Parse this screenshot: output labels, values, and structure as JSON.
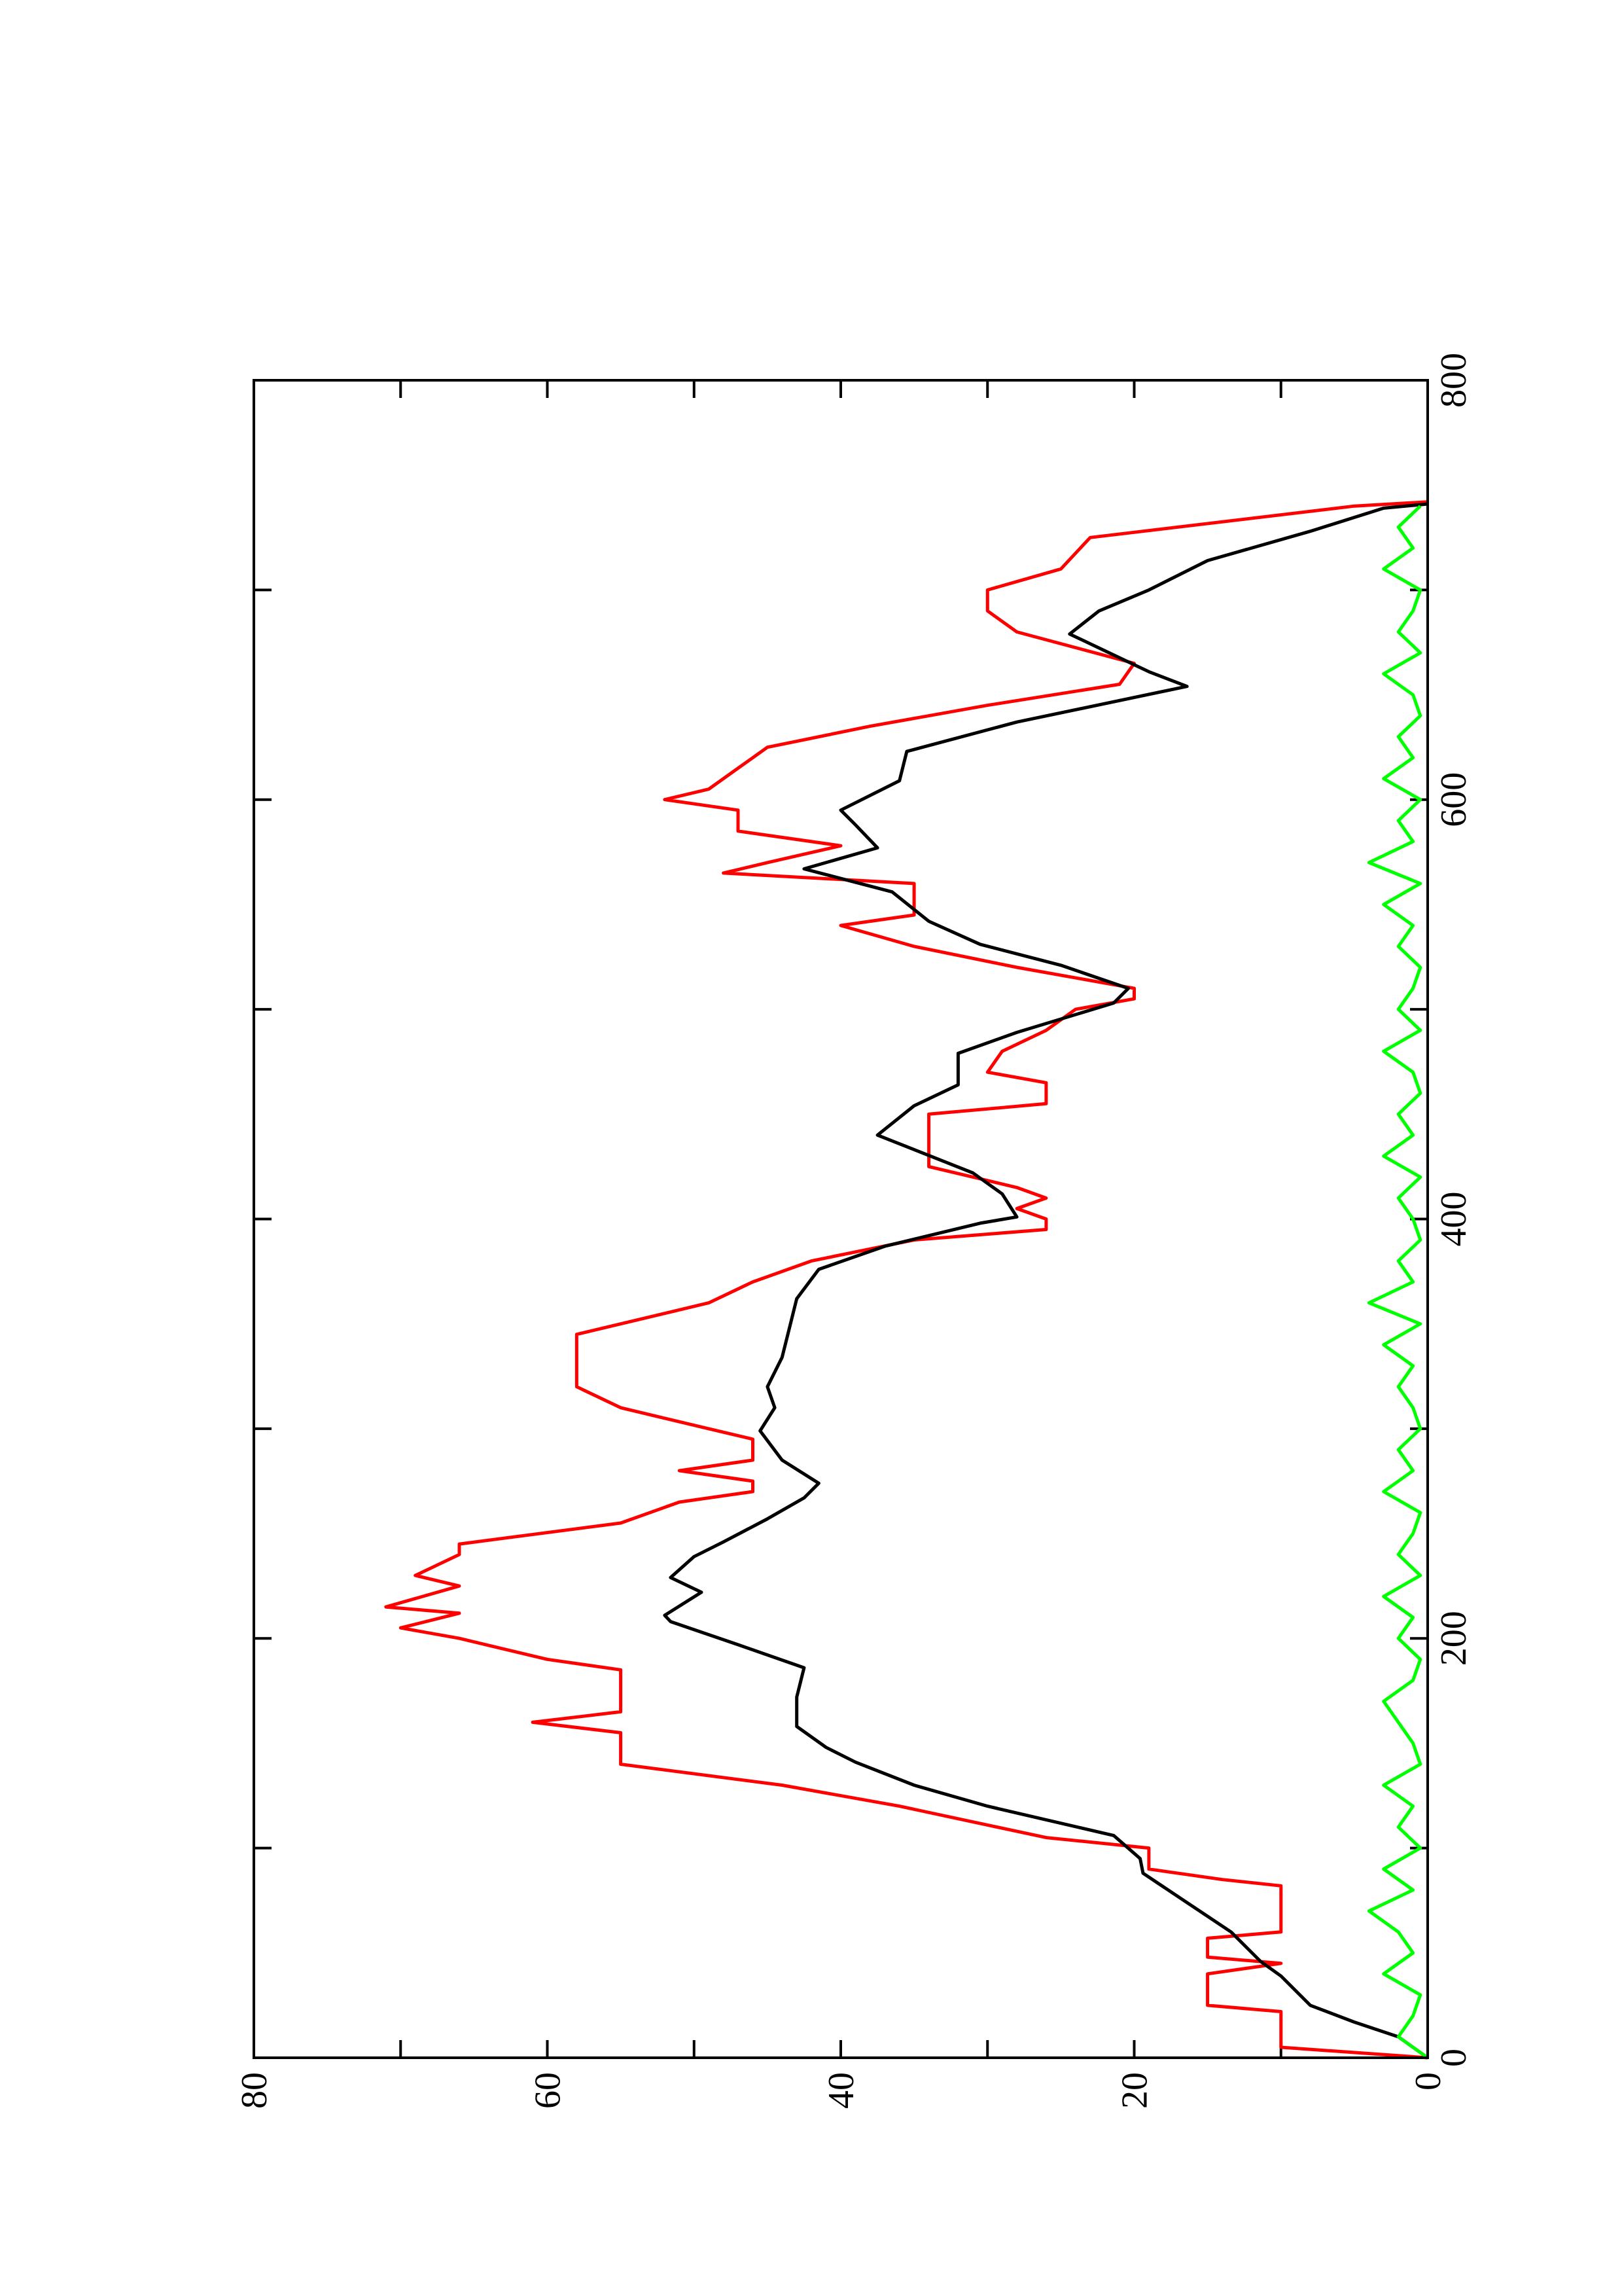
{
  "chart_data": {
    "type": "line",
    "xlim": [
      0,
      800
    ],
    "xticks": [
      0,
      200,
      400,
      600,
      800
    ],
    "xminor": [
      100,
      300,
      500,
      700
    ],
    "ylim": [
      0,
      80
    ],
    "yticks": [
      0,
      20,
      40,
      60,
      80
    ],
    "yminor": [
      10,
      30,
      50,
      70
    ],
    "rotated": true,
    "series": [
      {
        "color": "#ff0000",
        "x": [
          0,
          5,
          22,
          25,
          40,
          45,
          48,
          57,
          60,
          82,
          85,
          90,
          100,
          105,
          120,
          130,
          140,
          155,
          160,
          165,
          185,
          190,
          200,
          205,
          212,
          215,
          225,
          230,
          240,
          245,
          255,
          265,
          270,
          275,
          280,
          285,
          295,
          300,
          305,
          310,
          320,
          345,
          355,
          360,
          370,
          380,
          390,
          395,
          400,
          405,
          410,
          415,
          425,
          450,
          455,
          465,
          470,
          480,
          490,
          500,
          505,
          510,
          520,
          530,
          540,
          545,
          560,
          565,
          570,
          578,
          585,
          595,
          600,
          605,
          615,
          625,
          635,
          645,
          655,
          665,
          680,
          690,
          700,
          710,
          725,
          740,
          742
        ],
        "values": [
          0,
          10,
          10,
          15,
          15,
          10,
          15,
          15,
          10,
          10,
          14,
          19,
          19,
          26,
          36,
          44,
          55,
          55,
          61,
          55,
          55,
          60,
          66,
          70,
          66,
          71,
          66,
          69,
          66,
          66,
          55,
          51,
          46,
          46,
          51,
          46,
          46,
          49,
          52,
          55,
          58,
          58,
          52,
          49,
          46,
          42,
          35,
          26,
          26,
          28,
          26,
          28,
          34,
          34,
          26,
          26,
          30,
          29,
          26,
          24,
          20,
          20,
          28,
          35,
          40,
          35,
          35,
          48,
          45,
          40,
          47,
          47,
          52,
          49,
          47,
          45,
          38,
          30,
          21,
          20,
          28,
          30,
          30,
          25,
          23,
          5,
          0
        ]
      },
      {
        "color": "#000000",
        "x": [
          0,
          10,
          17,
          25,
          39,
          46,
          60,
          74,
          88,
          95,
          106,
          120,
          130,
          141,
          148,
          158,
          172,
          186,
          197,
          208,
          211,
          222,
          229,
          239,
          246,
          257,
          267,
          274,
          285,
          299,
          310,
          320,
          334,
          348,
          362,
          376,
          387,
          398,
          401,
          412,
          422,
          440,
          454,
          464,
          479,
          489,
          503,
          510,
          521,
          531,
          542,
          556,
          567,
          577,
          588,
          595,
          609,
          623,
          637,
          654,
          661,
          679,
          690,
          700,
          714,
          728,
          739,
          741
        ],
        "values": [
          0,
          2,
          5,
          8,
          10,
          11.4,
          13.4,
          16.4,
          19.4,
          19.6,
          21.4,
          30,
          35,
          39,
          41,
          43,
          43,
          42.5,
          47,
          51.6,
          52,
          49.5,
          51.6,
          50,
          48,
          45,
          42.5,
          41.5,
          44,
          45.5,
          44.5,
          45,
          44,
          43.5,
          43,
          41.5,
          37,
          30.5,
          28,
          29,
          31,
          37.5,
          35,
          32,
          32,
          28,
          21.4,
          20.4,
          25,
          30.5,
          34,
          36.5,
          42.5,
          37.5,
          39,
          40,
          36,
          35.5,
          28,
          16.4,
          19,
          24.4,
          22.4,
          19,
          15,
          8,
          3,
          0
        ]
      },
      {
        "color": "#00ff00",
        "x": [
          0,
          10,
          20,
          30,
          40,
          50,
          60,
          70,
          80,
          90,
          100,
          110,
          120,
          130,
          140,
          150,
          160,
          170,
          180,
          190,
          200,
          210,
          220,
          230,
          240,
          250,
          260,
          270,
          280,
          290,
          300,
          310,
          320,
          330,
          340,
          350,
          360,
          370,
          380,
          390,
          400,
          410,
          420,
          430,
          440,
          450,
          460,
          470,
          480,
          490,
          500,
          510,
          520,
          530,
          540,
          550,
          560,
          570,
          580,
          590,
          600,
          610,
          620,
          630,
          640,
          650,
          660,
          670,
          680,
          690,
          700,
          710,
          720,
          730,
          740
        ],
        "values": [
          0,
          2,
          1,
          0.5,
          3,
          1,
          2,
          4,
          1,
          3,
          0.5,
          2,
          1,
          3,
          0.5,
          1,
          2,
          3,
          1,
          0.5,
          2,
          1,
          3,
          0.5,
          2,
          1,
          0.5,
          3,
          1,
          2,
          0.5,
          1,
          2,
          1,
          3,
          0.5,
          4,
          1,
          2,
          0.5,
          1,
          2,
          0.5,
          3,
          1,
          2,
          0.5,
          1,
          3,
          0.5,
          2,
          1,
          0.5,
          2,
          1,
          3,
          0.5,
          4,
          1,
          2,
          0.5,
          3,
          1,
          2,
          0.5,
          1,
          3,
          0.5,
          2,
          1,
          0.5,
          3,
          1,
          2,
          0.5
        ]
      }
    ]
  }
}
